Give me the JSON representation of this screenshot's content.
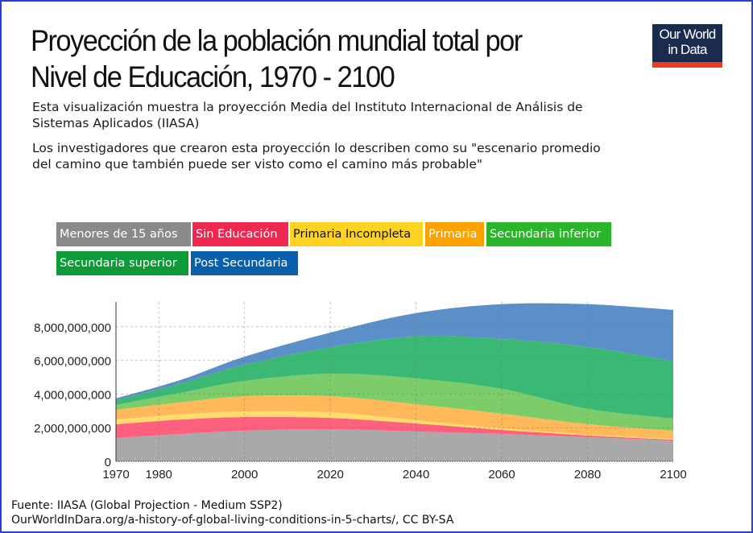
{
  "title": {
    "line1": "Proyección de la población mundial total por",
    "line2": "Nivel de Educación, 1970 - 2100"
  },
  "logo": {
    "line1": "Our World",
    "line2": "in Data"
  },
  "subtitle": {
    "p1_line1": "Esta visualización muestra la proyección Media del Instituto Internacional de Análisis de",
    "p1_line2": "Sistemas Aplicados (IIASA)",
    "p2_line1": "Los investigadores que crearon esta proyección lo describen como su \"escenario promedio",
    "p2_line2": "del camino que también puede ser visto como el camino más probable\""
  },
  "legend": [
    {
      "label": "Menores de 15 años",
      "color": "#8a8a8a",
      "text_color": "#ffffff"
    },
    {
      "label": "Sin Educación",
      "color": "#f0274f",
      "text_color": "#ffffff"
    },
    {
      "label": "Primaria Incompleta",
      "color": "#fdd221",
      "text_color": "#111111"
    },
    {
      "label": "Primaria",
      "color": "#fca100",
      "text_color": "#ffffff"
    },
    {
      "label": "Secundaria inferior",
      "color": "#2ab52a",
      "text_color": "#ffffff"
    },
    {
      "label": "Secundaria superior",
      "color": "#0f9a3a",
      "text_color": "#ffffff"
    },
    {
      "label": "Post Secundaria",
      "color": "#095fab",
      "text_color": "#ffffff"
    }
  ],
  "footer": {
    "source": "Fuente: IIASA (Global Projection - Medium SSP2)",
    "url": "OurWorldInDara.org/a-history-of-global-living-conditions-in-5-charts/, CC BY-SA"
  },
  "chart_data": {
    "type": "area",
    "stacked": true,
    "title": "Proyección de la población mundial total por Nivel de Educación, 1970 - 2100",
    "xlabel": "",
    "ylabel": "",
    "x": [
      1970,
      1985,
      2000,
      2020,
      2040,
      2060,
      2080,
      2100
    ],
    "xlim": [
      1970,
      2100
    ],
    "ylim": [
      0,
      9500000000
    ],
    "xticks": [
      "1970",
      "1980",
      "2000",
      "2020",
      "2040",
      "2060",
      "2080",
      "2100"
    ],
    "yticks": [
      "0",
      "2,000,000,000",
      "4,000,000,000",
      "6,000,000,000",
      "8,000,000,000"
    ],
    "ytick_values": [
      0,
      2000000000,
      4000000000,
      6000000000,
      8000000000
    ],
    "grid": true,
    "legend_position": "top",
    "series": [
      {
        "name": "Menores de 15 años",
        "color": "#a9a9a9",
        "values": [
          1390000000,
          1620000000,
          1820000000,
          1910000000,
          1770000000,
          1630000000,
          1440000000,
          1240000000
        ]
      },
      {
        "name": "Sin Educación",
        "color": "#ff607d",
        "values": [
          810000000,
          860000000,
          810000000,
          670000000,
          480000000,
          240000000,
          100000000,
          50000000
        ]
      },
      {
        "name": "Primaria Incompleta",
        "color": "#ffdc6b",
        "values": [
          290000000,
          310000000,
          330000000,
          330000000,
          190000000,
          100000000,
          50000000,
          50000000
        ]
      },
      {
        "name": "Primaria",
        "color": "#ffb95a",
        "values": [
          570000000,
          720000000,
          910000000,
          960000000,
          960000000,
          860000000,
          620000000,
          480000000
        ]
      },
      {
        "name": "Secundaria inferior",
        "color": "#7ccc6a",
        "values": [
          290000000,
          560000000,
          910000000,
          1340000000,
          1530000000,
          1480000000,
          910000000,
          720000000
        ]
      },
      {
        "name": "Secundaria superior",
        "color": "#3bb874",
        "values": [
          290000000,
          560000000,
          960000000,
          1580000000,
          2490000000,
          2970000000,
          3680000000,
          3400000000
        ]
      },
      {
        "name": "Post Secundaria",
        "color": "#5b8fc7",
        "values": [
          100000000,
          200000000,
          480000000,
          860000000,
          1390000000,
          2060000000,
          2540000000,
          3060000000
        ]
      }
    ]
  }
}
